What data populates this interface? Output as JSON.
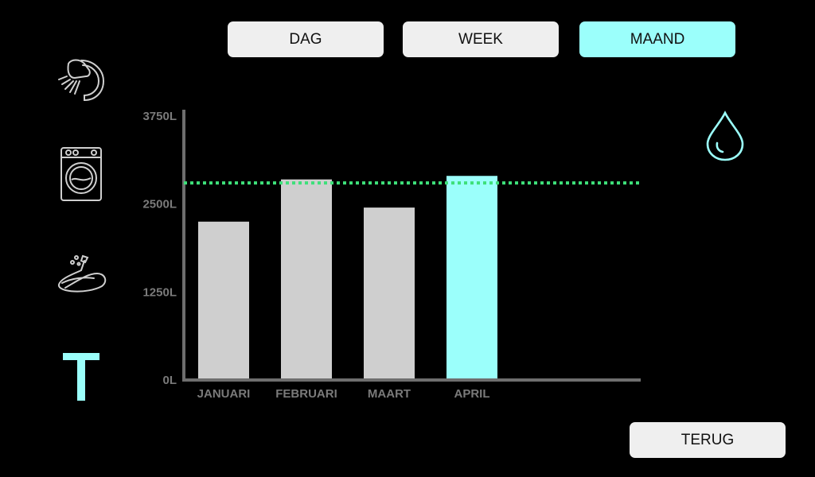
{
  "period_tabs": {
    "day": "DAG",
    "week": "WEEK",
    "month": "MAAND",
    "active": "month"
  },
  "back_label": "TERUG",
  "icons": {
    "shower": "shower-head-icon",
    "washer": "washing-machine-icon",
    "hose": "garden-hose-icon",
    "tap": "tap-icon",
    "drop": "water-drop-icon"
  },
  "colors": {
    "accent": "#9bfffb",
    "bar": "#cfcfcf",
    "target_line": "#3ee07a",
    "axis": "#6e6e6e"
  },
  "chart_data": {
    "type": "bar",
    "categories": [
      "JANUARI",
      "FEBRUARI",
      "MAART",
      "APRIL"
    ],
    "values": [
      2250,
      2850,
      2450,
      2900
    ],
    "highlight_index": 3,
    "threshold": 2800,
    "ylim": [
      0,
      3750
    ],
    "yticks": [
      0,
      1250,
      2500,
      3750
    ],
    "ytick_labels": [
      "0L",
      "1250L",
      "2500L",
      "3750L"
    ],
    "title": "",
    "xlabel": "",
    "ylabel": ""
  }
}
